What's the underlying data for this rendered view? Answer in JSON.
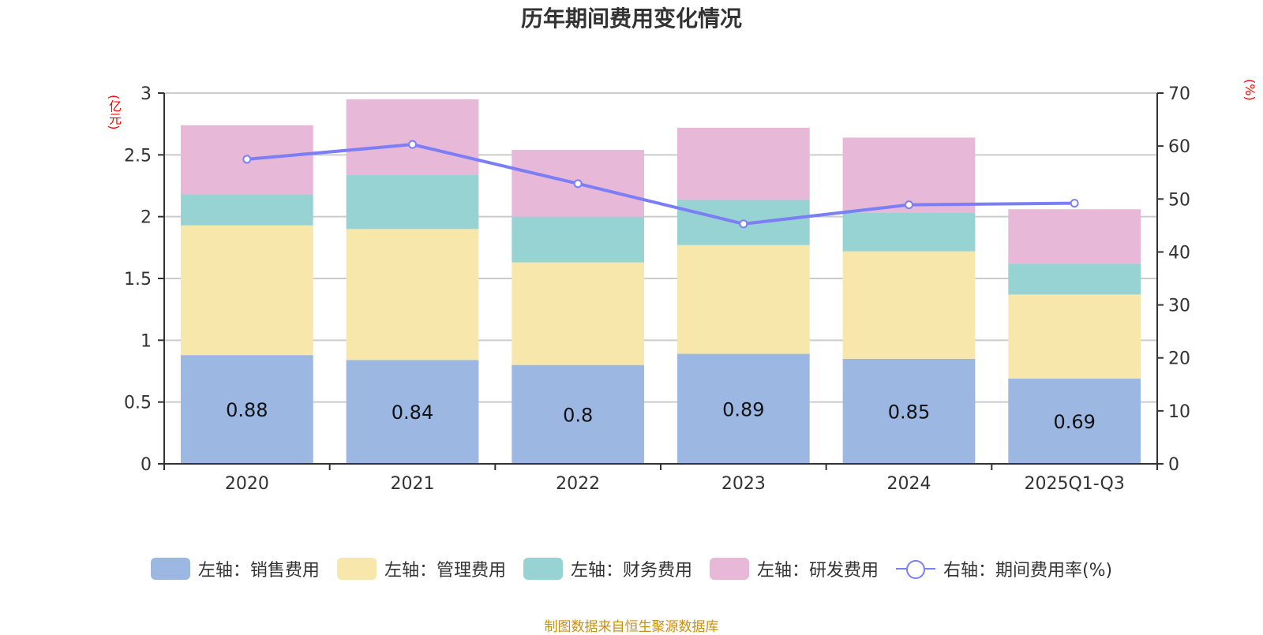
{
  "chart_data": {
    "type": "bar",
    "stacked": true,
    "title": "历年期间费用变化情况",
    "xlabel": "",
    "ylabel_left": "(亿元)",
    "ylabel_right": "(%)",
    "categories": [
      "2020",
      "2021",
      "2022",
      "2023",
      "2024",
      "2025Q1-Q3"
    ],
    "ylim_left": [
      0,
      3
    ],
    "yticks_left": [
      "0",
      "0.5",
      "1",
      "1.5",
      "2",
      "2.5",
      "3"
    ],
    "ylim_right": [
      0,
      70
    ],
    "yticks_right": [
      "0",
      "10",
      "20",
      "30",
      "40",
      "50",
      "60",
      "70"
    ],
    "grid": true,
    "legend_position": "bottom",
    "series": [
      {
        "name": "左轴：销售费用",
        "axis": "left",
        "kind": "bar",
        "color": "#9cb8e2",
        "values": [
          0.88,
          0.84,
          0.8,
          0.89,
          0.85,
          0.69
        ],
        "show_labels": true
      },
      {
        "name": "左轴：管理费用",
        "axis": "left",
        "kind": "bar",
        "color": "#f7e7aa",
        "values": [
          1.05,
          1.06,
          0.83,
          0.88,
          0.87,
          0.68
        ],
        "show_labels": false
      },
      {
        "name": "左轴：财务费用",
        "axis": "left",
        "kind": "bar",
        "color": "#98d3d4",
        "values": [
          0.25,
          0.44,
          0.37,
          0.37,
          0.31,
          0.25
        ],
        "show_labels": false
      },
      {
        "name": "左轴：研发费用",
        "axis": "left",
        "kind": "bar",
        "color": "#e7b8d8",
        "values": [
          0.56,
          0.61,
          0.54,
          0.58,
          0.61,
          0.44
        ],
        "show_labels": false
      },
      {
        "name": "右轴：期间费用率(%)",
        "axis": "right",
        "kind": "line",
        "color": "#7b7ef5",
        "values": [
          57.5,
          60.3,
          52.9,
          45.3,
          48.9,
          49.2
        ]
      }
    ]
  },
  "source": "制图数据来自恒生聚源数据库"
}
